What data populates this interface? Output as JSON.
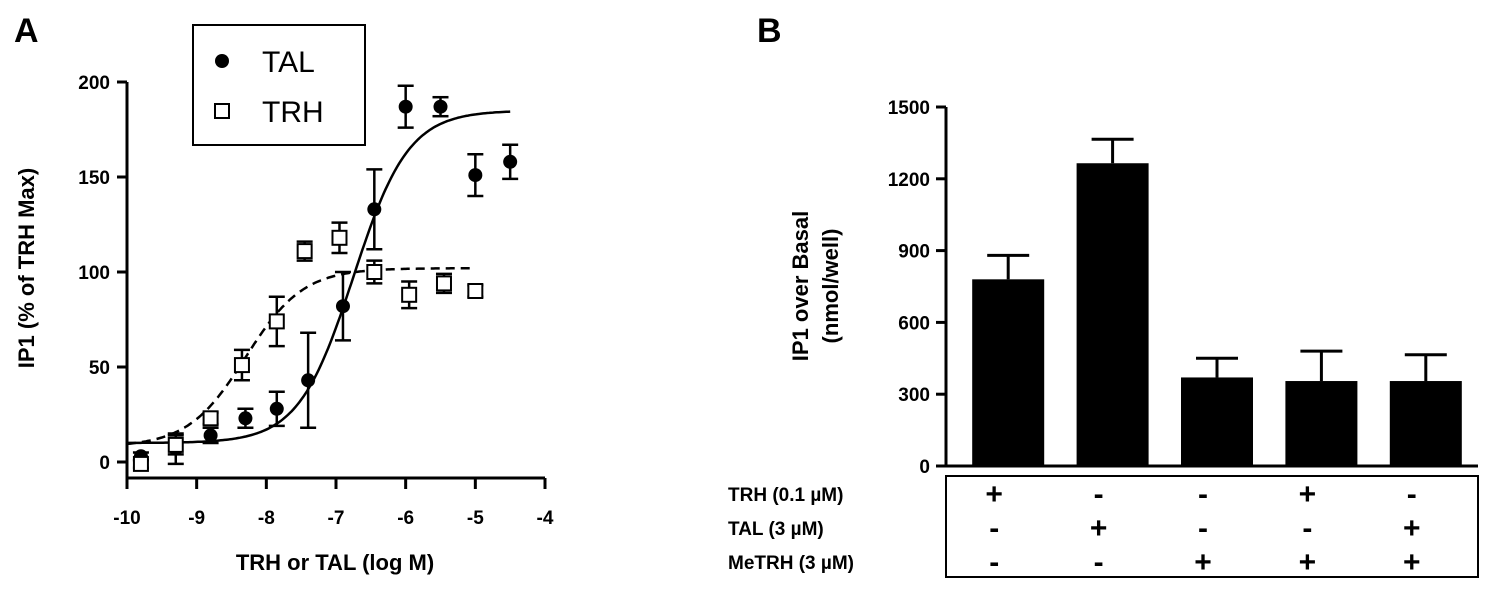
{
  "panel_a_label": "A",
  "panel_b_label": "B",
  "chart_data": [
    {
      "type": "scatter",
      "xlabel": "TRH or TAL (log M)",
      "ylabel": "IP1 (% of TRH Max)",
      "xlim": [
        -10,
        -4
      ],
      "ylim": [
        0,
        200
      ],
      "xticks": [
        -10,
        -9,
        -8,
        -7,
        -6,
        -5,
        -4
      ],
      "yticks": [
        0,
        50,
        100,
        150,
        200
      ],
      "legend": "top-left",
      "series": [
        {
          "name": "TAL",
          "marker": "filled-circle",
          "curve": "solid",
          "x": [
            -9.8,
            -9.3,
            -8.8,
            -8.3,
            -7.85,
            -7.4,
            -6.9,
            -6.45,
            -6.0,
            -5.5,
            -5.0,
            -4.5
          ],
          "y": [
            3,
            7,
            14,
            23,
            28,
            43,
            82,
            133,
            187,
            187,
            151,
            158
          ],
          "err": [
            2,
            8,
            4,
            5,
            9,
            25,
            18,
            21,
            11,
            5,
            11,
            9
          ],
          "fit": {
            "bottom": 10,
            "top": 185,
            "logEC50": -6.75,
            "hill": 1.1
          }
        },
        {
          "name": "TRH",
          "marker": "open-square",
          "curve": "dashed",
          "x": [
            -9.8,
            -9.3,
            -8.8,
            -8.35,
            -7.85,
            -7.45,
            -6.95,
            -6.45,
            -5.95,
            -5.45,
            -5.0
          ],
          "y": [
            -1,
            9,
            23,
            51,
            74,
            111,
            118,
            100,
            88,
            94,
            90
          ],
          "err": [
            2,
            5,
            3,
            8,
            13,
            5,
            8,
            6,
            7,
            5,
            3
          ],
          "fit": {
            "bottom": 8,
            "top": 102,
            "logEC50": -8.3,
            "hill": 1.05
          }
        }
      ]
    },
    {
      "type": "bar",
      "ylabel_line1": "IP1 over Basal",
      "ylabel_line2": "(nmol/well)",
      "ylim": [
        0,
        1500
      ],
      "yticks": [
        0,
        300,
        600,
        900,
        1200,
        1500
      ],
      "values": [
        780,
        1265,
        370,
        355,
        355
      ],
      "err": [
        100,
        100,
        80,
        125,
        110
      ],
      "color": "#000000",
      "treatment_rows": [
        {
          "label": "TRH  (0.1 µM)",
          "signs": [
            "+",
            "-",
            "-",
            "+",
            "-"
          ]
        },
        {
          "label": "TAL   (3 µM)",
          "signs": [
            "-",
            "+",
            "-",
            "-",
            "+"
          ]
        },
        {
          "label": "MeTRH (3 µM)",
          "signs": [
            "-",
            "-",
            "+",
            "+",
            "+"
          ]
        }
      ]
    }
  ]
}
